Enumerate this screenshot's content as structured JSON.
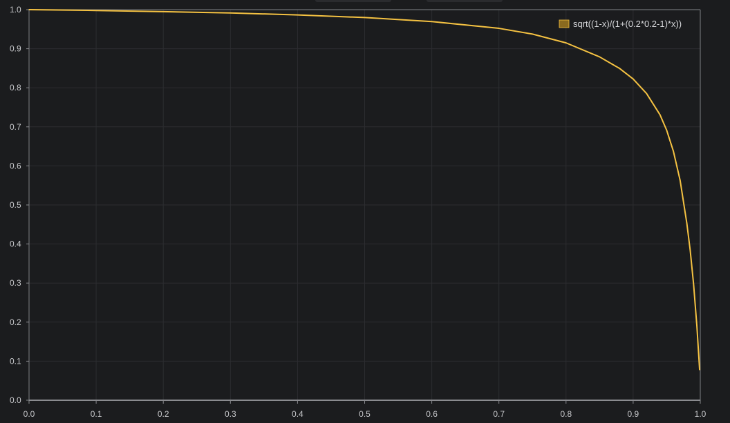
{
  "chart_data": {
    "type": "line",
    "title": "",
    "xlabel": "",
    "ylabel": "",
    "xlim": [
      0,
      1
    ],
    "ylim": [
      0,
      1
    ],
    "x_ticks": [
      "0.0",
      "0.1",
      "0.2",
      "0.3",
      "0.4",
      "0.5",
      "0.6",
      "0.7",
      "0.8",
      "0.9",
      "1.0"
    ],
    "y_ticks": [
      "0.0",
      "0.1",
      "0.2",
      "0.3",
      "0.4",
      "0.5",
      "0.6",
      "0.7",
      "0.8",
      "0.9",
      "1.0"
    ],
    "grid": true,
    "legend_position": "top-right",
    "series": [
      {
        "name": "sqrt((1-x)/(1+(0.2*0.2-1)*x))",
        "color": "#f5c242",
        "legend_swatch_color": "#8a6a1f",
        "x": [
          0,
          0.1,
          0.2,
          0.3,
          0.4,
          0.5,
          0.6,
          0.7,
          0.75,
          0.8,
          0.85,
          0.88,
          0.9,
          0.92,
          0.94,
          0.95,
          0.96,
          0.97,
          0.98,
          0.985,
          0.99,
          0.995,
          0.999
        ],
        "y": [
          1.0,
          0.9979,
          0.995,
          0.9915,
          0.9866,
          0.9798,
          0.9695,
          0.9522,
          0.9375,
          0.915,
          0.8791,
          0.8493,
          0.8226,
          0.7852,
          0.7309,
          0.691,
          0.6372,
          0.5627,
          0.4526,
          0.3838,
          0.2977,
          0.1888,
          0.0785
        ]
      }
    ]
  },
  "top_tabs": [
    {
      "color": "#2a2b2e"
    },
    {
      "color": "#2a2b2e"
    }
  ]
}
